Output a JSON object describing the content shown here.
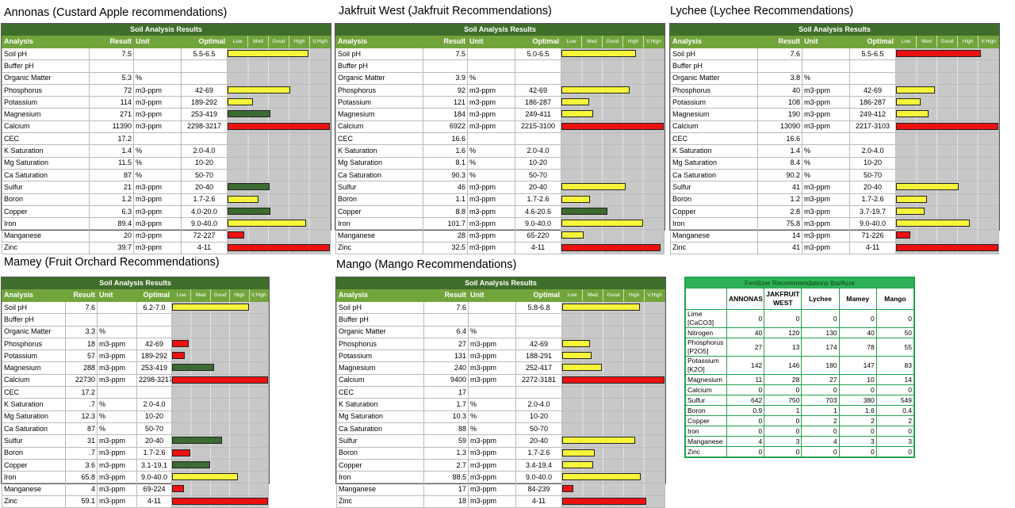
{
  "scale_labels": [
    "Low",
    "Med",
    "Good",
    "High",
    "V.High"
  ],
  "reports": [
    {
      "title": "Annonas (Custard Apple recommendations)",
      "banner": "Soil Analysis Results",
      "headers": {
        "analysis": "Analysis",
        "result": "Result",
        "unit": "Unit",
        "optimal": "Optimal"
      },
      "rows": [
        {
          "analysis": "Soil pH",
          "result": "7.5",
          "unit": "",
          "optimal": "5.5-6.5",
          "level": 0.79,
          "color": "yellow"
        },
        {
          "analysis": "Buffer pH",
          "result": "",
          "unit": "",
          "optimal": "",
          "level": 0,
          "color": ""
        },
        {
          "analysis": "Organic Matter",
          "result": "5.3",
          "unit": "%",
          "optimal": "",
          "level": 0,
          "color": ""
        },
        {
          "analysis": "Phosphorus",
          "result": "72",
          "unit": "m3-ppm",
          "optimal": "42-69",
          "level": 0.61,
          "color": "yellow"
        },
        {
          "analysis": "Potassium",
          "result": "114",
          "unit": "m3-ppm",
          "optimal": "189-292",
          "level": 0.25,
          "color": "yellow"
        },
        {
          "analysis": "Magnesium",
          "result": "271",
          "unit": "m3-ppm",
          "optimal": "253-419",
          "level": 0.42,
          "color": "green"
        },
        {
          "analysis": "Calcium",
          "result": "11390",
          "unit": "m3-ppm",
          "optimal": "2298-3217",
          "level": 1.0,
          "color": "red"
        },
        {
          "analysis": "CEC",
          "result": "17.2",
          "unit": "",
          "optimal": "",
          "level": 0,
          "color": ""
        },
        {
          "analysis": "K Saturation",
          "result": "1.4",
          "unit": "%",
          "optimal": "2.0-4.0",
          "level": 0,
          "color": ""
        },
        {
          "analysis": "Mg Saturation",
          "result": "11.5",
          "unit": "%",
          "optimal": "10-20",
          "level": 0,
          "color": ""
        },
        {
          "analysis": "Ca Saturation",
          "result": "87",
          "unit": "%",
          "optimal": "50-70",
          "level": 0,
          "color": ""
        },
        {
          "analysis": "Sulfur",
          "result": "21",
          "unit": "m3-ppm",
          "optimal": "20-40",
          "level": 0.41,
          "color": "green"
        },
        {
          "analysis": "Boron",
          "result": "1.2",
          "unit": "m3-ppm",
          "optimal": "1.7-2.6",
          "level": 0.3,
          "color": "yellow"
        },
        {
          "analysis": "Copper",
          "result": "6.3",
          "unit": "m3-ppm",
          "optimal": "4.0-20.0",
          "level": 0.42,
          "color": "green"
        },
        {
          "analysis": "Iron",
          "result": "89.4",
          "unit": "m3-ppm",
          "optimal": "9.0-40.0",
          "level": 0.77,
          "color": "yellow"
        },
        {
          "analysis": "Manganese",
          "result": "20",
          "unit": "m3-ppm",
          "optimal": "72-227",
          "level": 0.16,
          "color": "red"
        },
        {
          "analysis": "Zinc",
          "result": "39.7",
          "unit": "m3-ppm",
          "optimal": "4-11",
          "level": 1.0,
          "color": "red"
        }
      ]
    },
    {
      "title": "Jakfruit West (Jakfruit Recommendations)",
      "banner": "Soil Analysis Results",
      "headers": {
        "analysis": "Analysis",
        "result": "Result",
        "unit": "Unit",
        "optimal": "Optimal"
      },
      "rows": [
        {
          "analysis": "Soil pH",
          "result": "7.5",
          "unit": "",
          "optimal": "5.0-6.5",
          "level": 0.73,
          "color": "yellow"
        },
        {
          "analysis": "Buffer pH",
          "result": "",
          "unit": "",
          "optimal": "",
          "level": 0,
          "color": ""
        },
        {
          "analysis": "Organic Matter",
          "result": "3.9",
          "unit": "%",
          "optimal": "",
          "level": 0,
          "color": ""
        },
        {
          "analysis": "Phosphorus",
          "result": "92",
          "unit": "m3-ppm",
          "optimal": "42-69",
          "level": 0.67,
          "color": "yellow"
        },
        {
          "analysis": "Potassium",
          "result": "121",
          "unit": "m3-ppm",
          "optimal": "186-287",
          "level": 0.27,
          "color": "yellow"
        },
        {
          "analysis": "Magnesium",
          "result": "184",
          "unit": "m3-ppm",
          "optimal": "249-411",
          "level": 0.31,
          "color": "yellow"
        },
        {
          "analysis": "Calcium",
          "result": "6922",
          "unit": "m3-ppm",
          "optimal": "2215-3100",
          "level": 1.0,
          "color": "red"
        },
        {
          "analysis": "CEC",
          "result": "16.6",
          "unit": "",
          "optimal": "",
          "level": 0,
          "color": ""
        },
        {
          "analysis": "K Saturation",
          "result": "1.6",
          "unit": "%",
          "optimal": "2.0-4.0",
          "level": 0,
          "color": ""
        },
        {
          "analysis": "Mg Saturation",
          "result": "8.1",
          "unit": "%",
          "optimal": "10-20",
          "level": 0,
          "color": ""
        },
        {
          "analysis": "Ca Saturation",
          "result": "90.3",
          "unit": "%",
          "optimal": "50-70",
          "level": 0,
          "color": ""
        },
        {
          "analysis": "Sulfur",
          "result": "46",
          "unit": "m3-ppm",
          "optimal": "20-40",
          "level": 0.63,
          "color": "yellow"
        },
        {
          "analysis": "Boron",
          "result": "1.1",
          "unit": "m3-ppm",
          "optimal": "1.7-2.6",
          "level": 0.28,
          "color": "yellow"
        },
        {
          "analysis": "Copper",
          "result": "8.8",
          "unit": "m3-ppm",
          "optimal": "4.6-20.6",
          "level": 0.45,
          "color": "green"
        },
        {
          "analysis": "Iron",
          "result": "101.7",
          "unit": "m3-ppm",
          "optimal": "9.0-40.0",
          "level": 0.8,
          "color": "yellow"
        },
        {
          "analysis": "Manganese",
          "result": "28",
          "unit": "m3-ppm",
          "optimal": "65-220",
          "level": 0.22,
          "color": "yellow"
        },
        {
          "analysis": "Zinc",
          "result": "32.5",
          "unit": "m3-ppm",
          "optimal": "4-11",
          "level": 0.97,
          "color": "red"
        }
      ]
    },
    {
      "title": "Lychee (Lychee Recommendations)",
      "banner": "Soil Analysis Results",
      "headers": {
        "analysis": "Analysis",
        "result": "Result",
        "unit": "Unit",
        "optimal": "Optimal"
      },
      "rows": [
        {
          "analysis": "Soil pH",
          "result": "7.6",
          "unit": "",
          "optimal": "5.5-6.5",
          "level": 0.83,
          "color": "red"
        },
        {
          "analysis": "Buffer pH",
          "result": "",
          "unit": "",
          "optimal": "",
          "level": 0,
          "color": ""
        },
        {
          "analysis": "Organic Matter",
          "result": "3.8",
          "unit": "%",
          "optimal": "",
          "level": 0,
          "color": ""
        },
        {
          "analysis": "Phosphorus",
          "result": "40",
          "unit": "m3-ppm",
          "optimal": "42-69",
          "level": 0.38,
          "color": "yellow"
        },
        {
          "analysis": "Potassium",
          "result": "108",
          "unit": "m3-ppm",
          "optimal": "186-287",
          "level": 0.24,
          "color": "yellow"
        },
        {
          "analysis": "Magnesium",
          "result": "190",
          "unit": "m3-ppm",
          "optimal": "249-412",
          "level": 0.32,
          "color": "yellow"
        },
        {
          "analysis": "Calcium",
          "result": "13090",
          "unit": "m3-ppm",
          "optimal": "2217-3103",
          "level": 1.0,
          "color": "red"
        },
        {
          "analysis": "CEC",
          "result": "16.6",
          "unit": "",
          "optimal": "",
          "level": 0,
          "color": ""
        },
        {
          "analysis": "K Saturation",
          "result": "1.4",
          "unit": "%",
          "optimal": "2.0-4.0",
          "level": 0,
          "color": ""
        },
        {
          "analysis": "Mg Saturation",
          "result": "8.4",
          "unit": "%",
          "optimal": "10-20",
          "level": 0,
          "color": ""
        },
        {
          "analysis": "Ca Saturation",
          "result": "90.2",
          "unit": "%",
          "optimal": "50-70",
          "level": 0,
          "color": ""
        },
        {
          "analysis": "Sulfur",
          "result": "41",
          "unit": "m3-ppm",
          "optimal": "20-40",
          "level": 0.61,
          "color": "yellow"
        },
        {
          "analysis": "Boron",
          "result": "1.2",
          "unit": "m3-ppm",
          "optimal": "1.7-2.6",
          "level": 0.3,
          "color": "yellow"
        },
        {
          "analysis": "Copper",
          "result": "2.8",
          "unit": "m3-ppm",
          "optimal": "3.7-19.7",
          "level": 0.28,
          "color": "yellow"
        },
        {
          "analysis": "Iron",
          "result": "75.8",
          "unit": "m3-ppm",
          "optimal": "9.0-40.0",
          "level": 0.72,
          "color": "yellow"
        },
        {
          "analysis": "Manganese",
          "result": "14",
          "unit": "m3-ppm",
          "optimal": "71-226",
          "level": 0.14,
          "color": "red"
        },
        {
          "analysis": "Zinc",
          "result": "41",
          "unit": "m3-ppm",
          "optimal": "4-11",
          "level": 1.0,
          "color": "red"
        }
      ]
    },
    {
      "title": "Mamey (Fruit Orchard Recommendations)",
      "banner": "Soil Analysis Results",
      "headers": {
        "analysis": "Analysis",
        "result": "Result",
        "unit": "Unit",
        "optimal": "Optimal"
      },
      "rows": [
        {
          "analysis": "Soil pH",
          "result": "7.6",
          "unit": "",
          "optimal": "6.2-7.0",
          "level": 0.8,
          "color": "yellow"
        },
        {
          "analysis": "Buffer pH",
          "result": "",
          "unit": "",
          "optimal": "",
          "level": 0,
          "color": ""
        },
        {
          "analysis": "Organic Matter",
          "result": "3.3",
          "unit": "%",
          "optimal": "",
          "level": 0,
          "color": ""
        },
        {
          "analysis": "Phosphorus",
          "result": "18",
          "unit": "m3-ppm",
          "optimal": "42-69",
          "level": 0.17,
          "color": "red"
        },
        {
          "analysis": "Potassium",
          "result": "57",
          "unit": "m3-ppm",
          "optimal": "189-292",
          "level": 0.13,
          "color": "red"
        },
        {
          "analysis": "Magnesium",
          "result": "288",
          "unit": "m3-ppm",
          "optimal": "253-419",
          "level": 0.44,
          "color": "green"
        },
        {
          "analysis": "Calcium",
          "result": "22730",
          "unit": "m3-ppm",
          "optimal": "2298-3217",
          "level": 1.0,
          "color": "red"
        },
        {
          "analysis": "CEC",
          "result": "17.2",
          "unit": "",
          "optimal": "",
          "level": 0,
          "color": ""
        },
        {
          "analysis": "K Saturation",
          "result": ".7",
          "unit": "%",
          "optimal": "2.0-4.0",
          "level": 0,
          "color": ""
        },
        {
          "analysis": "Mg Saturation",
          "result": "12.3",
          "unit": "%",
          "optimal": "10-20",
          "level": 0,
          "color": ""
        },
        {
          "analysis": "Ca Saturation",
          "result": "87",
          "unit": "%",
          "optimal": "50-70",
          "level": 0,
          "color": ""
        },
        {
          "analysis": "Sulfur",
          "result": "31",
          "unit": "m3-ppm",
          "optimal": "20-40",
          "level": 0.52,
          "color": "green"
        },
        {
          "analysis": "Boron",
          "result": ".7",
          "unit": "m3-ppm",
          "optimal": "1.7-2.6",
          "level": 0.19,
          "color": "red"
        },
        {
          "analysis": "Copper",
          "result": "3.6",
          "unit": "m3-ppm",
          "optimal": "3.1-19.1",
          "level": 0.4,
          "color": "green"
        },
        {
          "analysis": "Iron",
          "result": "65.8",
          "unit": "m3-ppm",
          "optimal": "9.0-40.0",
          "level": 0.69,
          "color": "yellow"
        },
        {
          "analysis": "Manganese",
          "result": "4",
          "unit": "m3-ppm",
          "optimal": "69-224",
          "level": 0.12,
          "color": "red"
        },
        {
          "analysis": "Zinc",
          "result": "59.1",
          "unit": "m3-ppm",
          "optimal": "4-11",
          "level": 1.0,
          "color": "red"
        }
      ]
    },
    {
      "title": "Mango (Mango Recommendations)",
      "banner": "Soil Analysis Results",
      "headers": {
        "analysis": "Analysis",
        "result": "Result",
        "unit": "Unit",
        "optimal": "Optimal"
      },
      "rows": [
        {
          "analysis": "Soil pH",
          "result": "7.6",
          "unit": "",
          "optimal": "5.8-6.8",
          "level": 0.76,
          "color": "yellow"
        },
        {
          "analysis": "Buffer pH",
          "result": "",
          "unit": "",
          "optimal": "",
          "level": 0,
          "color": ""
        },
        {
          "analysis": "Organic Matter",
          "result": "6.4",
          "unit": "%",
          "optimal": "",
          "level": 0,
          "color": ""
        },
        {
          "analysis": "Phosphorus",
          "result": "27",
          "unit": "m3-ppm",
          "optimal": "42-69",
          "level": 0.27,
          "color": "yellow"
        },
        {
          "analysis": "Potassium",
          "result": "131",
          "unit": "m3-ppm",
          "optimal": "188-291",
          "level": 0.29,
          "color": "yellow"
        },
        {
          "analysis": "Magnesium",
          "result": "240",
          "unit": "m3-ppm",
          "optimal": "252-417",
          "level": 0.39,
          "color": "yellow"
        },
        {
          "analysis": "Calcium",
          "result": "9400",
          "unit": "m3-ppm",
          "optimal": "2272-3181",
          "level": 1.0,
          "color": "red"
        },
        {
          "analysis": "CEC",
          "result": "17",
          "unit": "",
          "optimal": "",
          "level": 0,
          "color": ""
        },
        {
          "analysis": "K Saturation",
          "result": "1.7",
          "unit": "%",
          "optimal": "2.0-4.0",
          "level": 0,
          "color": ""
        },
        {
          "analysis": "Mg Saturation",
          "result": "10.3",
          "unit": "%",
          "optimal": "10-20",
          "level": 0,
          "color": ""
        },
        {
          "analysis": "Ca Saturation",
          "result": "88",
          "unit": "%",
          "optimal": "50-70",
          "level": 0,
          "color": ""
        },
        {
          "analysis": "Sulfur",
          "result": "59",
          "unit": "m3-ppm",
          "optimal": "20-40",
          "level": 0.71,
          "color": "yellow"
        },
        {
          "analysis": "Boron",
          "result": "1.3",
          "unit": "m3-ppm",
          "optimal": "1.7-2.6",
          "level": 0.32,
          "color": "yellow"
        },
        {
          "analysis": "Copper",
          "result": "2.7",
          "unit": "m3-ppm",
          "optimal": "3.4-19.4",
          "level": 0.3,
          "color": "yellow"
        },
        {
          "analysis": "Iron",
          "result": "88.5",
          "unit": "m3-ppm",
          "optimal": "9.0-40.0",
          "level": 0.77,
          "color": "yellow"
        },
        {
          "analysis": "Manganese",
          "result": "17",
          "unit": "m3-ppm",
          "optimal": "84-239",
          "level": 0.11,
          "color": "red"
        },
        {
          "analysis": "Zinc",
          "result": "18",
          "unit": "m3-ppm",
          "optimal": "4-11",
          "level": 0.82,
          "color": "red"
        }
      ]
    }
  ],
  "fertilizer": {
    "caption": "Fertilizer Recommendations lbs/Acre",
    "columns": [
      "ANNONAS",
      "JAKFRUIT WEST",
      "Lychee",
      "Mamey",
      "Mango"
    ],
    "rows": [
      {
        "label": "Lime",
        "sub": "[CaCO3]",
        "values": [
          "0",
          "0",
          "0",
          "0",
          "0"
        ]
      },
      {
        "label": "Nitrogen",
        "sub": "",
        "values": [
          "40",
          "120",
          "130",
          "40",
          "50"
        ]
      },
      {
        "label": "Phosphorus",
        "sub": "[P2O5]",
        "values": [
          "27",
          "13",
          "174",
          "78",
          "55"
        ]
      },
      {
        "label": "Potassium",
        "sub": "[K2O]",
        "values": [
          "142",
          "146",
          "180",
          "147",
          "83"
        ]
      },
      {
        "label": "Magnesium",
        "sub": "",
        "values": [
          "11",
          "28",
          "27",
          "10",
          "14"
        ]
      },
      {
        "label": "Calcium",
        "sub": "",
        "values": [
          "0",
          "0",
          "0",
          "0",
          "0"
        ]
      },
      {
        "label": "Sulfur",
        "sub": "",
        "values": [
          "642",
          "750",
          "703",
          "380",
          "549"
        ]
      },
      {
        "label": "Boron",
        "sub": "",
        "values": [
          "0.9",
          "1",
          "1",
          "1.6",
          "0.4"
        ]
      },
      {
        "label": "Copper",
        "sub": "",
        "values": [
          "0",
          "0",
          "2",
          "2",
          "2"
        ]
      },
      {
        "label": "Iron",
        "sub": "",
        "values": [
          "0",
          "0",
          "0",
          "0",
          "0"
        ]
      },
      {
        "label": "Manganese",
        "sub": "",
        "values": [
          "4",
          "3",
          "4",
          "3",
          "3"
        ]
      },
      {
        "label": "Zinc",
        "sub": "",
        "values": [
          "0",
          "0",
          "0",
          "0",
          "0"
        ]
      }
    ]
  }
}
